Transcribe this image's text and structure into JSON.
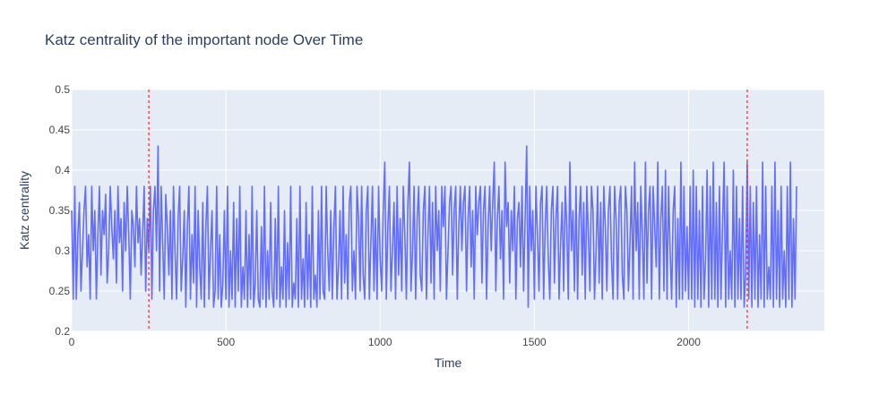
{
  "chart_data": {
    "type": "line",
    "title": "Katz centrality of the important node Over Time",
    "xlabel": "Time",
    "ylabel": "Katz centrality",
    "xlim": [
      0,
      2440
    ],
    "ylim": [
      0.2,
      0.5
    ],
    "x_ticks": [
      0,
      500,
      1000,
      1500,
      2000
    ],
    "y_ticks": [
      0.2,
      0.25,
      0.3,
      0.35,
      0.4,
      0.45,
      0.5
    ],
    "grid": true,
    "legend": "none",
    "colors": {
      "series": "#636efa",
      "vline": "#e0312f",
      "plot_bg": "#e5ecf6",
      "grid": "#ffffff"
    },
    "series": [
      {
        "x_start": 0,
        "x_step": 5,
        "values": [
          0.35,
          0.24,
          0.38,
          0.24,
          0.32,
          0.36,
          0.25,
          0.3,
          0.35,
          0.38,
          0.28,
          0.32,
          0.24,
          0.38,
          0.3,
          0.35,
          0.24,
          0.32,
          0.38,
          0.27,
          0.35,
          0.32,
          0.37,
          0.26,
          0.3,
          0.38,
          0.33,
          0.29,
          0.35,
          0.26,
          0.38,
          0.31,
          0.34,
          0.25,
          0.36,
          0.3,
          0.38,
          0.32,
          0.24,
          0.35,
          0.33,
          0.28,
          0.38,
          0.31,
          0.34,
          0.27,
          0.32,
          0.38,
          0.25,
          0.34,
          0.3,
          0.38,
          0.24,
          0.35,
          0.38,
          0.3,
          0.43,
          0.25,
          0.38,
          0.31,
          0.24,
          0.37,
          0.33,
          0.27,
          0.35,
          0.24,
          0.38,
          0.3,
          0.24,
          0.34,
          0.38,
          0.25,
          0.29,
          0.35,
          0.23,
          0.33,
          0.38,
          0.24,
          0.32,
          0.26,
          0.38,
          0.23,
          0.35,
          0.28,
          0.24,
          0.36,
          0.23,
          0.33,
          0.38,
          0.24,
          0.3,
          0.35,
          0.23,
          0.25,
          0.38,
          0.24,
          0.32,
          0.23,
          0.26,
          0.35,
          0.24,
          0.38,
          0.23,
          0.3,
          0.24,
          0.36,
          0.23,
          0.34,
          0.25,
          0.38,
          0.23,
          0.28,
          0.24,
          0.35,
          0.23,
          0.32,
          0.24,
          0.38,
          0.23,
          0.26,
          0.35,
          0.24,
          0.23,
          0.33,
          0.24,
          0.38,
          0.23,
          0.3,
          0.24,
          0.36,
          0.25,
          0.23,
          0.34,
          0.24,
          0.38,
          0.23,
          0.28,
          0.24,
          0.35,
          0.23,
          0.31,
          0.24,
          0.38,
          0.23,
          0.26,
          0.24,
          0.34,
          0.23,
          0.38,
          0.24,
          0.29,
          0.23,
          0.36,
          0.24,
          0.32,
          0.23,
          0.38,
          0.24,
          0.27,
          0.23,
          0.35,
          0.24,
          0.38,
          0.25,
          0.24,
          0.38,
          0.3,
          0.25,
          0.35,
          0.24,
          0.33,
          0.38,
          0.24,
          0.28,
          0.35,
          0.24,
          0.38,
          0.26,
          0.32,
          0.24,
          0.36,
          0.38,
          0.25,
          0.3,
          0.24,
          0.38,
          0.34,
          0.25,
          0.38,
          0.27,
          0.24,
          0.35,
          0.38,
          0.24,
          0.31,
          0.38,
          0.25,
          0.34,
          0.24,
          0.38,
          0.29,
          0.25,
          0.35,
          0.41,
          0.24,
          0.33,
          0.38,
          0.25,
          0.3,
          0.36,
          0.24,
          0.38,
          0.27,
          0.34,
          0.25,
          0.38,
          0.32,
          0.24,
          0.36,
          0.41,
          0.25,
          0.3,
          0.38,
          0.24,
          0.34,
          0.38,
          0.27,
          0.25,
          0.35,
          0.38,
          0.24,
          0.32,
          0.38,
          0.26,
          0.36,
          0.24,
          0.38,
          0.3,
          0.35,
          0.25,
          0.38,
          0.33,
          0.38,
          0.24,
          0.3,
          0.36,
          0.38,
          0.27,
          0.35,
          0.38,
          0.24,
          0.33,
          0.38,
          0.3,
          0.36,
          0.38,
          0.25,
          0.34,
          0.38,
          0.28,
          0.35,
          0.24,
          0.38,
          0.32,
          0.36,
          0.38,
          0.26,
          0.35,
          0.38,
          0.24,
          0.33,
          0.38,
          0.3,
          0.36,
          0.41,
          0.25,
          0.34,
          0.38,
          0.29,
          0.35,
          0.24,
          0.41,
          0.33,
          0.36,
          0.26,
          0.35,
          0.3,
          0.38,
          0.24,
          0.34,
          0.36,
          0.28,
          0.38,
          0.25,
          0.34,
          0.43,
          0.23,
          0.38,
          0.3,
          0.35,
          0.24,
          0.38,
          0.32,
          0.25,
          0.36,
          0.38,
          0.24,
          0.33,
          0.38,
          0.29,
          0.24,
          0.35,
          0.38,
          0.26,
          0.34,
          0.38,
          0.24,
          0.31,
          0.36,
          0.25,
          0.38,
          0.33,
          0.24,
          0.41,
          0.3,
          0.35,
          0.25,
          0.38,
          0.24,
          0.34,
          0.38,
          0.27,
          0.36,
          0.24,
          0.38,
          0.32,
          0.25,
          0.38,
          0.35,
          0.24,
          0.3,
          0.38,
          0.26,
          0.36,
          0.24,
          0.38,
          0.33,
          0.25,
          0.35,
          0.38,
          0.29,
          0.24,
          0.38,
          0.34,
          0.24,
          0.36,
          0.38,
          0.27,
          0.24,
          0.38,
          0.35,
          0.25,
          0.31,
          0.38,
          0.24,
          0.41,
          0.3,
          0.36,
          0.24,
          0.38,
          0.32,
          0.24,
          0.41,
          0.26,
          0.35,
          0.38,
          0.24,
          0.38,
          0.33,
          0.28,
          0.41,
          0.24,
          0.34,
          0.38,
          0.25,
          0.4,
          0.24,
          0.38,
          0.3,
          0.24,
          0.35,
          0.38,
          0.23,
          0.34,
          0.24,
          0.41,
          0.24,
          0.38,
          0.25,
          0.33,
          0.24,
          0.38,
          0.24,
          0.4,
          0.23,
          0.38,
          0.24,
          0.35,
          0.23,
          0.38,
          0.24,
          0.29,
          0.4,
          0.23,
          0.38,
          0.24,
          0.41,
          0.24,
          0.36,
          0.23,
          0.38,
          0.24,
          0.33,
          0.41,
          0.23,
          0.38,
          0.24,
          0.3,
          0.24,
          0.4,
          0.23,
          0.38,
          0.24,
          0.34,
          0.24,
          0.38,
          0.23,
          0.27,
          0.41,
          0.24,
          0.38,
          0.23,
          0.36,
          0.24,
          0.38,
          0.23,
          0.32,
          0.24,
          0.41,
          0.23,
          0.38,
          0.24,
          0.28,
          0.24,
          0.38,
          0.23,
          0.41,
          0.24,
          0.35,
          0.23,
          0.38,
          0.24,
          0.3,
          0.23,
          0.38,
          0.24,
          0.41,
          0.23,
          0.34,
          0.24,
          0.38
        ]
      }
    ],
    "vlines": [
      250,
      2190
    ]
  }
}
